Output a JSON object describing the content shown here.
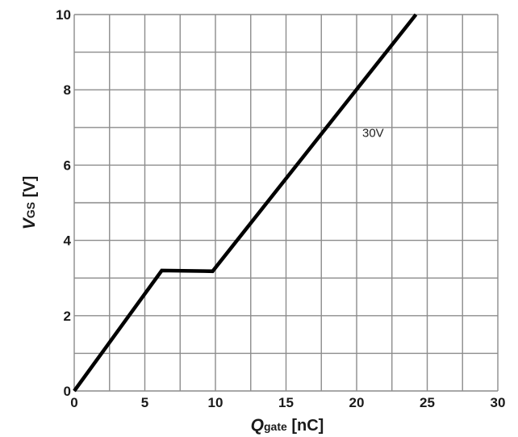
{
  "chart_data": {
    "type": "line",
    "xlabel": {
      "main": "Q",
      "sub": "gate",
      "unit": " [nC]"
    },
    "ylabel": {
      "main": "V",
      "sub": "GS",
      "unit": " [V]"
    },
    "xlim": [
      0,
      30
    ],
    "ylim": [
      0,
      10
    ],
    "x_ticks": [
      0,
      5,
      10,
      15,
      20,
      25,
      30
    ],
    "y_ticks": [
      0,
      2,
      4,
      6,
      8,
      10
    ],
    "grid": true,
    "grid_x_step": 2.5,
    "grid_y_step": 1,
    "series": [
      {
        "x": [
          0,
          6.2,
          9.8,
          24.2
        ],
        "y": [
          0,
          3.2,
          3.18,
          10
        ],
        "color": "#000000"
      }
    ],
    "annotations": [
      {
        "text": "30V",
        "x": 20.4,
        "y": 6.75
      }
    ]
  }
}
